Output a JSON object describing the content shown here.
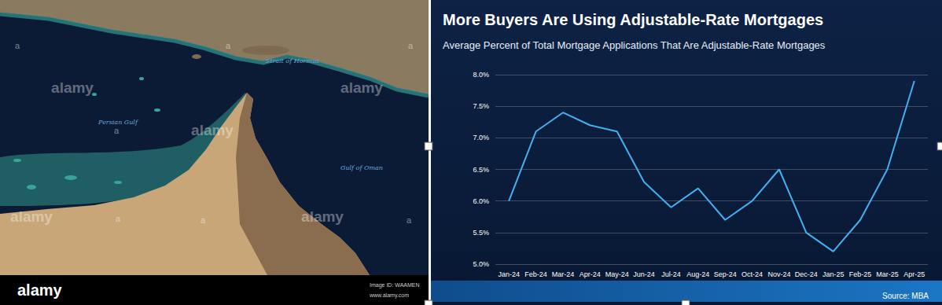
{
  "chart_data": {
    "type": "line",
    "title": "More Buyers Are Using Adjustable-Rate Mortgages",
    "subtitle": "Average Percent of Total Mortgage Applications That Are Adjustable-Rate Mortgages",
    "source": "Source: MBA",
    "categories": [
      "Jan-24",
      "Feb-24",
      "Mar-24",
      "Apr-24",
      "May-24",
      "Jun-24",
      "Jul-24",
      "Aug-24",
      "Sep-24",
      "Oct-24",
      "Nov-24",
      "Dec-24",
      "Jan-25",
      "Feb-25",
      "Mar-25",
      "Apr-25"
    ],
    "values": [
      6.0,
      7.1,
      7.4,
      7.2,
      7.1,
      6.3,
      5.9,
      6.2,
      5.7,
      6.0,
      6.5,
      5.5,
      5.2,
      5.7,
      6.5,
      7.9
    ],
    "color": "#45b0f0",
    "ylim": [
      5,
      8
    ],
    "yticks": [
      {
        "value": 5,
        "label": "5.0%"
      },
      {
        "value": 5.5,
        "label": "5.5%"
      },
      {
        "value": 6,
        "label": "6.0%"
      },
      {
        "value": 6.5,
        "label": "6.5%"
      },
      {
        "value": 7,
        "label": "7.0%"
      },
      {
        "value": 7.5,
        "label": "7.5%"
      },
      {
        "value": 8,
        "label": "8.0%"
      }
    ],
    "grid": true
  },
  "image": {
    "labels": [
      "Persian Gulf",
      "Strait of Hormuz",
      "Gulf of Oman"
    ],
    "watermark": "alamy",
    "watermark_mark": "a",
    "footer": {
      "logo": "alamy",
      "image_id": "Image ID: WAAMEN",
      "url": "www.alamy.com"
    }
  }
}
